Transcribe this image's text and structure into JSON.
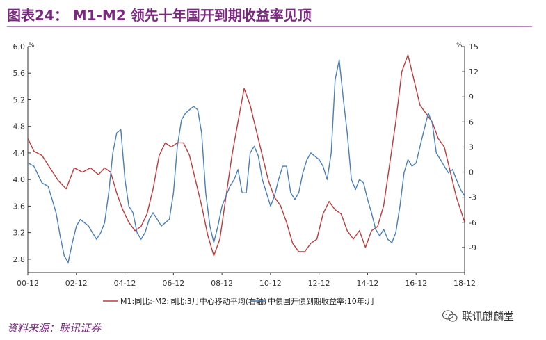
{
  "title": "图表24：  M1-M2 领先十年国开到期收益率见顶",
  "source": "资料来源：联讯证券",
  "watermark": "联讯麒麟堂",
  "chart_data": {
    "type": "line",
    "left_axis": {
      "unit": "%",
      "min": 2.6,
      "max": 6.0,
      "ticks": [
        "2.8",
        "3.2",
        "3.6",
        "4.0",
        "4.4",
        "4.8",
        "5.2",
        "5.6",
        "6.0"
      ]
    },
    "right_axis": {
      "unit": "%",
      "min": -12,
      "max": 15,
      "ticks": [
        "-9",
        "-6",
        "-3",
        "0",
        "3",
        "6",
        "9",
        "12",
        "15"
      ]
    },
    "x_ticks": [
      "00-12",
      "02-12",
      "04-12",
      "06-12",
      "08-12",
      "10-12",
      "12-12",
      "14-12",
      "16-12",
      "18-12"
    ],
    "x_range": [
      2000.917,
      2018.917
    ],
    "colors": {
      "m1m2": "#c0393b",
      "bond": "#4a7fb8",
      "axis": "#333333"
    },
    "series": [
      {
        "name": "M1:同比:-M2:同比:3月中心移动平均(右轴)",
        "axis": "right",
        "color": "#c0393b",
        "points": [
          [
            2000.92,
            4.0
          ],
          [
            2001.17,
            2.5
          ],
          [
            2001.5,
            2.0
          ],
          [
            2001.83,
            0.5
          ],
          [
            2002.17,
            -1.0
          ],
          [
            2002.5,
            -2.0
          ],
          [
            2002.83,
            0.5
          ],
          [
            2003.17,
            0.0
          ],
          [
            2003.5,
            0.5
          ],
          [
            2003.83,
            -0.3
          ],
          [
            2004.08,
            0.5
          ],
          [
            2004.33,
            0.0
          ],
          [
            2004.58,
            -2.5
          ],
          [
            2004.83,
            -4.5
          ],
          [
            2005.08,
            -6.0
          ],
          [
            2005.33,
            -7.0
          ],
          [
            2005.58,
            -6.5
          ],
          [
            2005.83,
            -5.0
          ],
          [
            2006.08,
            -2.0
          ],
          [
            2006.33,
            2.0
          ],
          [
            2006.58,
            3.5
          ],
          [
            2006.83,
            3.0
          ],
          [
            2007.08,
            3.5
          ],
          [
            2007.33,
            3.5
          ],
          [
            2007.58,
            2.0
          ],
          [
            2007.83,
            -1.0
          ],
          [
            2008.08,
            -4.0
          ],
          [
            2008.33,
            -7.5
          ],
          [
            2008.58,
            -10.0
          ],
          [
            2008.83,
            -8.0
          ],
          [
            2009.08,
            -3.0
          ],
          [
            2009.33,
            2.0
          ],
          [
            2009.58,
            6.0
          ],
          [
            2009.83,
            10.0
          ],
          [
            2010.08,
            8.0
          ],
          [
            2010.33,
            5.0
          ],
          [
            2010.58,
            2.0
          ],
          [
            2010.83,
            -1.0
          ],
          [
            2011.08,
            -3.0
          ],
          [
            2011.33,
            -4.0
          ],
          [
            2011.58,
            -6.0
          ],
          [
            2011.83,
            -8.5
          ],
          [
            2012.08,
            -9.5
          ],
          [
            2012.33,
            -9.5
          ],
          [
            2012.58,
            -8.5
          ],
          [
            2012.83,
            -8.0
          ],
          [
            2013.08,
            -5.0
          ],
          [
            2013.33,
            -3.5
          ],
          [
            2013.58,
            -4.5
          ],
          [
            2013.83,
            -5.0
          ],
          [
            2014.08,
            -7.0
          ],
          [
            2014.33,
            -8.0
          ],
          [
            2014.58,
            -7.0
          ],
          [
            2014.83,
            -9.0
          ],
          [
            2015.08,
            -7.0
          ],
          [
            2015.33,
            -6.5
          ],
          [
            2015.58,
            -4.0
          ],
          [
            2015.83,
            1.0
          ],
          [
            2016.08,
            6.0
          ],
          [
            2016.33,
            12.0
          ],
          [
            2016.58,
            14.0
          ],
          [
            2016.83,
            11.0
          ],
          [
            2017.08,
            8.0
          ],
          [
            2017.33,
            7.0
          ],
          [
            2017.58,
            6.0
          ],
          [
            2017.83,
            4.0
          ],
          [
            2018.08,
            3.0
          ],
          [
            2018.33,
            0.0
          ],
          [
            2018.58,
            -3.0
          ],
          [
            2018.92,
            -6.0
          ]
        ]
      },
      {
        "name": "中债国开债到期收益率:10年:月",
        "axis": "left",
        "color": "#4a7fb8",
        "points": [
          [
            2000.92,
            4.25
          ],
          [
            2001.17,
            4.2
          ],
          [
            2001.5,
            3.95
          ],
          [
            2001.75,
            3.9
          ],
          [
            2001.92,
            3.7
          ],
          [
            2002.08,
            3.5
          ],
          [
            2002.25,
            3.15
          ],
          [
            2002.42,
            2.85
          ],
          [
            2002.58,
            2.75
          ],
          [
            2002.75,
            3.05
          ],
          [
            2002.92,
            3.3
          ],
          [
            2003.08,
            3.4
          ],
          [
            2003.25,
            3.35
          ],
          [
            2003.42,
            3.3
          ],
          [
            2003.58,
            3.2
          ],
          [
            2003.75,
            3.1
          ],
          [
            2003.92,
            3.2
          ],
          [
            2004.08,
            3.35
          ],
          [
            2004.25,
            3.8
          ],
          [
            2004.42,
            4.4
          ],
          [
            2004.58,
            4.7
          ],
          [
            2004.75,
            4.75
          ],
          [
            2004.92,
            4.0
          ],
          [
            2005.08,
            3.6
          ],
          [
            2005.25,
            3.5
          ],
          [
            2005.42,
            3.2
          ],
          [
            2005.58,
            3.1
          ],
          [
            2005.75,
            3.2
          ],
          [
            2005.92,
            3.4
          ],
          [
            2006.08,
            3.5
          ],
          [
            2006.25,
            3.4
          ],
          [
            2006.42,
            3.3
          ],
          [
            2006.58,
            3.35
          ],
          [
            2006.75,
            3.4
          ],
          [
            2006.92,
            3.8
          ],
          [
            2007.08,
            4.5
          ],
          [
            2007.25,
            4.9
          ],
          [
            2007.42,
            5.0
          ],
          [
            2007.58,
            5.05
          ],
          [
            2007.75,
            5.1
          ],
          [
            2007.92,
            5.05
          ],
          [
            2008.08,
            4.7
          ],
          [
            2008.25,
            3.8
          ],
          [
            2008.42,
            3.3
          ],
          [
            2008.58,
            3.05
          ],
          [
            2008.75,
            3.3
          ],
          [
            2008.92,
            3.6
          ],
          [
            2009.08,
            3.75
          ],
          [
            2009.25,
            3.9
          ],
          [
            2009.42,
            4.0
          ],
          [
            2009.58,
            4.15
          ],
          [
            2009.75,
            3.8
          ],
          [
            2009.92,
            3.8
          ],
          [
            2010.08,
            4.4
          ],
          [
            2010.25,
            4.5
          ],
          [
            2010.42,
            4.35
          ],
          [
            2010.58,
            4.0
          ],
          [
            2010.75,
            3.8
          ],
          [
            2010.92,
            3.6
          ],
          [
            2011.08,
            3.75
          ],
          [
            2011.25,
            4.0
          ],
          [
            2011.42,
            4.2
          ],
          [
            2011.58,
            4.2
          ],
          [
            2011.75,
            3.8
          ],
          [
            2011.92,
            3.7
          ],
          [
            2012.08,
            3.8
          ],
          [
            2012.25,
            4.1
          ],
          [
            2012.42,
            4.3
          ],
          [
            2012.58,
            4.4
          ],
          [
            2012.75,
            4.35
          ],
          [
            2012.92,
            4.3
          ],
          [
            2013.08,
            4.2
          ],
          [
            2013.25,
            4.0
          ],
          [
            2013.42,
            4.4
          ],
          [
            2013.58,
            5.5
          ],
          [
            2013.75,
            5.8
          ],
          [
            2013.92,
            5.2
          ],
          [
            2014.08,
            4.7
          ],
          [
            2014.25,
            4.0
          ],
          [
            2014.42,
            3.85
          ],
          [
            2014.58,
            4.0
          ],
          [
            2014.75,
            3.95
          ],
          [
            2014.92,
            3.7
          ],
          [
            2015.08,
            3.5
          ],
          [
            2015.25,
            3.25
          ],
          [
            2015.42,
            3.15
          ],
          [
            2015.58,
            3.25
          ],
          [
            2015.75,
            3.1
          ],
          [
            2015.92,
            3.05
          ],
          [
            2016.08,
            3.2
          ],
          [
            2016.25,
            3.6
          ],
          [
            2016.42,
            4.1
          ],
          [
            2016.58,
            4.3
          ],
          [
            2016.75,
            4.2
          ],
          [
            2016.92,
            4.25
          ],
          [
            2017.08,
            4.5
          ],
          [
            2017.25,
            4.75
          ],
          [
            2017.42,
            5.0
          ],
          [
            2017.58,
            4.85
          ],
          [
            2017.75,
            4.4
          ],
          [
            2017.92,
            4.3
          ],
          [
            2018.08,
            4.2
          ],
          [
            2018.25,
            4.1
          ],
          [
            2018.42,
            4.15
          ],
          [
            2018.58,
            4.0
          ],
          [
            2018.75,
            3.85
          ],
          [
            2018.92,
            3.75
          ]
        ]
      }
    ]
  }
}
